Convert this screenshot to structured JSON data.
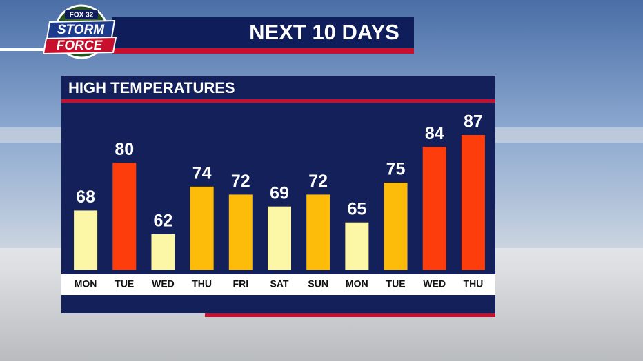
{
  "logo": {
    "station": "FOX 32",
    "line1": "STORM",
    "line2": "FORCE"
  },
  "chart_data": {
    "type": "bar",
    "title": "NEXT 10 DAYS",
    "subtitle": "HIGH TEMPERATURES",
    "categories": [
      "MON",
      "TUE",
      "WED",
      "THU",
      "FRI",
      "SAT",
      "SUN",
      "MON",
      "TUE",
      "WED",
      "THU"
    ],
    "values": [
      68,
      80,
      62,
      74,
      72,
      69,
      72,
      65,
      75,
      84,
      87
    ],
    "colors": [
      "#fbf7a6",
      "#fe3d0c",
      "#fbf7a6",
      "#fdbb0a",
      "#fdbb0a",
      "#fbf7a6",
      "#fdbb0a",
      "#fbf7a6",
      "#fdbb0a",
      "#fe3d0c",
      "#fe3d0c"
    ]
  }
}
